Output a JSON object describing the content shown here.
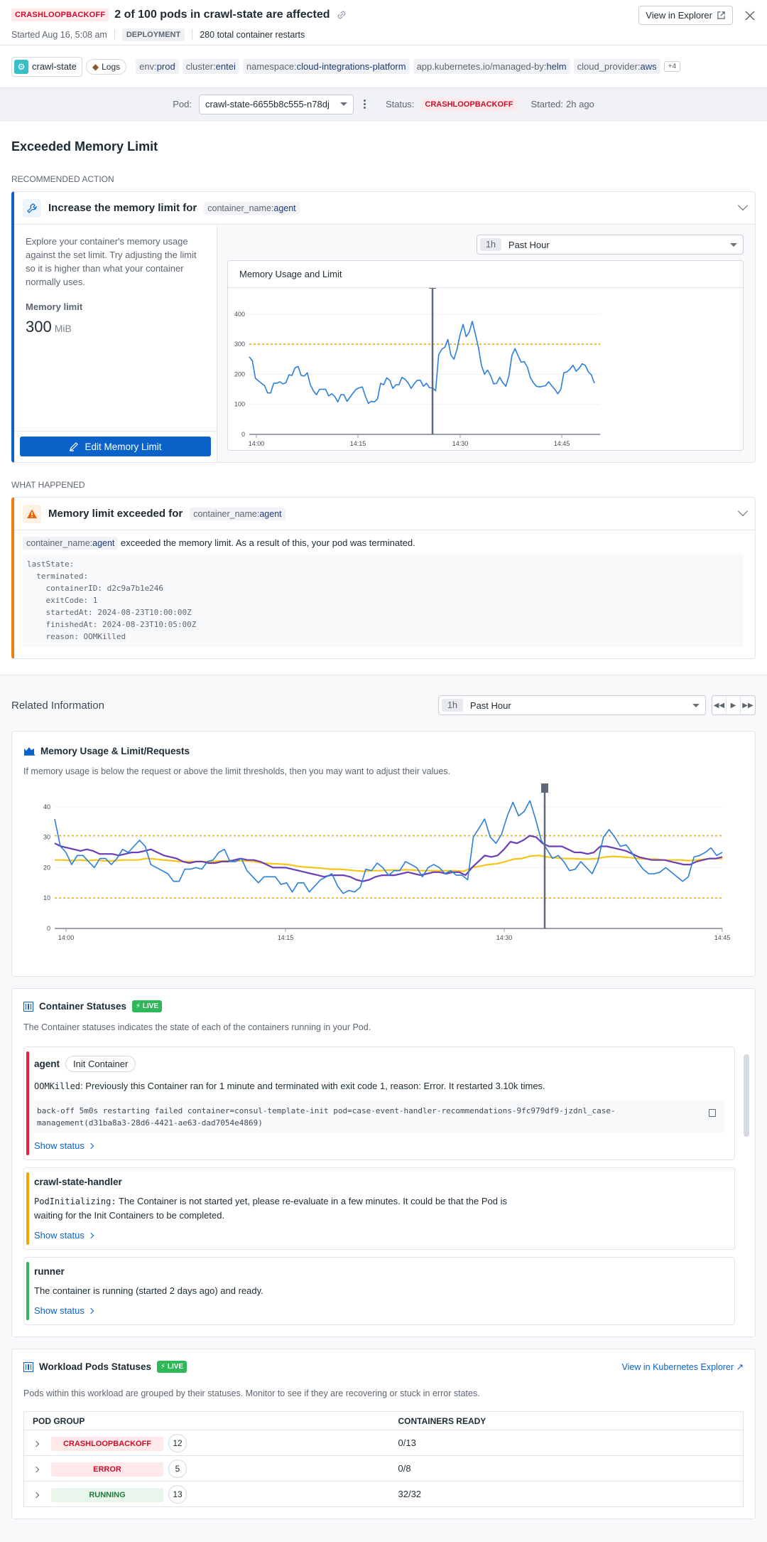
{
  "header": {
    "status_badge": "CRASHLOOPBACKOFF",
    "title": "2 of 100 pods in crawl-state are affected",
    "started": "Started Aug 16, 5:08 am",
    "kind_badge": "DEPLOYMENT",
    "restarts": "280 total container restarts",
    "view_explorer": "View in Explorer"
  },
  "tags": {
    "service": "crawl-state",
    "logs": "Logs",
    "items": [
      {
        "k": "env:",
        "v": "prod"
      },
      {
        "k": "cluster:",
        "v": "entei"
      },
      {
        "k": "namespace:",
        "v": "cloud-integrations-platform"
      },
      {
        "k": "app.kubernetes.io/managed-by:",
        "v": "helm"
      },
      {
        "k": "cloud_provider:",
        "v": "aws"
      }
    ],
    "more": "+4"
  },
  "podbar": {
    "pod_label": "Pod:",
    "pod_value": "crawl-state-6655b8c555-n78dj",
    "status_label": "Status:",
    "status_value": "CRASHLOOPBACKOFF",
    "started_label": "Started:",
    "started_value": "2h ago"
  },
  "section_title": "Exceeded Memory Limit",
  "recommended": {
    "label": "RECOMMENDED ACTION",
    "title": "Increase the memory limit for",
    "tag_k": "container_name:",
    "tag_v": "agent",
    "description": "Explore your container's memory usage against the set limit. Try adjusting the limit so it is higher than what your container normally uses.",
    "limit_label": "Memory limit",
    "limit_value": "300",
    "limit_unit": "MiB",
    "edit_button": "Edit Memory Limit",
    "time_pill": "1h",
    "time_label": "Past Hour",
    "chart_title": "Memory Usage and Limit"
  },
  "what_happened": {
    "label": "WHAT HAPPENED",
    "title": "Memory limit exceeded for",
    "tag_k": "container_name:",
    "tag_v": "agent",
    "line": "exceeded the memory limit. As a result of this, your pod was terminated.",
    "code": "lastState:\n  terminated:\n    containerID: d2c9a7b1e246\n    exitCode: 1\n    startedAt: 2024-08-23T10:00:00Z\n    finishedAt: 2024-08-23T10:05:00Z\n    reason: OOMKilled"
  },
  "related": {
    "title": "Related Information",
    "time_pill": "1h",
    "time_label": "Past Hour",
    "mem_panel": {
      "title": "Memory Usage & Limit/Requests",
      "desc": "If memory usage is below the request or above the limit thresholds, then you may want to adjust their values."
    },
    "containers": {
      "title": "Container Statuses",
      "live": "LIVE",
      "desc": "The Container statuses indicates the state of each of the containers running in your Pod.",
      "items": [
        {
          "name": "agent",
          "pill": "Init Container",
          "code_prefix": "OOMKilled",
          "msg": ": Previously this Container ran for 1 minute and terminated with exit code 1, reason: Error. It restarted 3.10k times.",
          "log": "back-off 5m0s restarting failed container=consul-template-init pod=case-event-handler-recommendations-9fc979df9-jzdnl_case-management(d31ba8a3-28d6-4421-ae63-dad7054e4869)",
          "show": "Show status",
          "color": "#e5213d"
        },
        {
          "name": "crawl-state-handler",
          "code_prefix": "PodInitializing:",
          "msg": " The Container is not started yet, please re-evaluate in a few minutes. It could be that the Pod is waiting for the Init Containers to be completed.",
          "show": "Show status",
          "color": "#f5a300"
        },
        {
          "name": "runner",
          "msg": "The container is running (started 2 days ago) and ready.",
          "show": "Show status",
          "color": "#2fb85a"
        }
      ]
    },
    "workload": {
      "title": "Workload Pods Statuses",
      "live": "LIVE",
      "link": "View in Kubernetes Explorer",
      "desc": "Pods within this workload are grouped by their statuses. Monitor to see if they are recovering or stuck in error states.",
      "columns": [
        "POD GROUP",
        "CONTAINERS READY"
      ],
      "rows": [
        {
          "group": "CRASHLOOPBACKOFF",
          "count": "12",
          "ready": "0/13"
        },
        {
          "group": "ERROR",
          "count": "5",
          "ready": "0/8"
        },
        {
          "group": "RUNNING",
          "count": "13",
          "ready": "32/32"
        }
      ]
    }
  },
  "chart_data": [
    {
      "type": "line",
      "title": "Memory Usage and Limit",
      "x_ticks": [
        "14:00",
        "14:15",
        "14:30",
        "14:45"
      ],
      "y_ticks": [
        0,
        100,
        200,
        300,
        400
      ],
      "ylim": [
        0,
        440
      ],
      "threshold": {
        "name": "limit",
        "value": 300,
        "color": "#f5b800"
      },
      "marker_time": "14:25",
      "series": [
        {
          "name": "memory usage",
          "color": "#2b7fd9",
          "values": [
            258,
            245,
            187,
            178,
            170,
            162,
            138,
            138,
            170,
            170,
            175,
            168,
            172,
            198,
            196,
            222,
            226,
            196,
            194,
            205,
            165,
            145,
            132,
            150,
            150,
            150,
            128,
            135,
            126,
            108,
            132,
            132,
            110,
            124,
            138,
            150,
            155,
            158,
            128,
            103,
            110,
            108,
            118,
            170,
            165,
            188,
            180,
            153,
            165,
            165,
            190,
            183,
            172,
            153,
            168,
            180,
            180,
            160,
            170,
            155,
            155,
            145,
            265,
            283,
            290,
            316,
            264,
            250,
            283,
            332,
            366,
            325,
            340,
            376,
            335,
            290,
            230,
            200,
            214,
            196,
            168,
            170,
            190,
            172,
            160,
            195,
            263,
            285,
            262,
            240,
            242,
            225,
            190,
            172,
            160,
            158,
            160,
            162,
            175,
            162,
            150,
            135,
            150,
            205,
            208,
            217,
            230,
            210,
            220,
            235,
            230,
            208,
            198,
            170
          ]
        }
      ]
    },
    {
      "type": "line",
      "title": "Memory Usage & Limit/Requests",
      "x_ticks": [
        "14:00",
        "14:15",
        "14:30",
        "14:45"
      ],
      "y_ticks": [
        0,
        10,
        20,
        30,
        40
      ],
      "ylim": [
        0,
        43
      ],
      "thresholds": [
        {
          "name": "limit",
          "value": 30.5
        },
        {
          "name": "request",
          "value": 10
        }
      ],
      "series": [
        {
          "name": "usage",
          "color": "#2b7fd9",
          "values": [
            36,
            27,
            25,
            21,
            24,
            24,
            22,
            20,
            23,
            23,
            21,
            23,
            26,
            25,
            27,
            29,
            27,
            21,
            20,
            19,
            18,
            15.5,
            15.5,
            19.5,
            19.5,
            20,
            19.5,
            22,
            22.5,
            25,
            26,
            22,
            22,
            23,
            19,
            17,
            15,
            17,
            17,
            17,
            14.5,
            15,
            12,
            15,
            15,
            12,
            14,
            16,
            17,
            18,
            14,
            11.5,
            12.5,
            12,
            13.5,
            19.5,
            19,
            21.5,
            20,
            17.5,
            19,
            19,
            22,
            21,
            20,
            17,
            20,
            21,
            20,
            18,
            19,
            17.5,
            17.5,
            16,
            30,
            33,
            36,
            30,
            28,
            31,
            37,
            41.5,
            37,
            38.5,
            42,
            36,
            29,
            26,
            23,
            24,
            22,
            19,
            19.5,
            22,
            20,
            18,
            22,
            30,
            32.5,
            30,
            27,
            27.5,
            25,
            22,
            19.5,
            18,
            18,
            18.5,
            20,
            18.5,
            17,
            15.5,
            17,
            23.5,
            24,
            25,
            26.5,
            24,
            25
          ]
        },
        {
          "name": "avg",
          "color": "#6b3fb8",
          "values": [
            28,
            27,
            26.5,
            26,
            25.5,
            26,
            25.5,
            24.5,
            24.5,
            24.5,
            24,
            24.5,
            25,
            25,
            25.5,
            26,
            25,
            24,
            23.5,
            23,
            22,
            21.5,
            22,
            22,
            21.5,
            21.5,
            22,
            22,
            22.5,
            23,
            22.5,
            22.5,
            22,
            21,
            20,
            20,
            20,
            19.5,
            19,
            18.5,
            18,
            17.5,
            17,
            17.5,
            17.5,
            17.5,
            17,
            16,
            15.5,
            16,
            17,
            17.5,
            17.5,
            17.5,
            18,
            18.5,
            18,
            17.5,
            18,
            18.5,
            18.5,
            18,
            18.5,
            18.5,
            17.5,
            20,
            22,
            24,
            23.5,
            24,
            26,
            28.5,
            28,
            29,
            30.5,
            30,
            28,
            27,
            27,
            27,
            26,
            25,
            25,
            24.5,
            25,
            27,
            27,
            26.5,
            26,
            25.5,
            24.5,
            23.5,
            23,
            22.5,
            22.5,
            22.5,
            22,
            21.5,
            21,
            21,
            22,
            22.5,
            23,
            23,
            23.5
          ]
        },
        {
          "name": "request avg",
          "color": "#f5c518",
          "values": [
            22.5,
            22.5,
            22.3,
            22.5,
            22.3,
            22.5,
            22.2,
            22.2,
            22.5,
            22.5,
            22.5,
            23,
            22.8,
            22.5,
            22.3,
            22,
            22,
            22,
            22,
            22,
            22.2,
            22.3,
            22.3,
            22.2,
            22,
            21.5,
            21.3,
            21.2,
            21,
            20.5,
            20.2,
            20,
            19.8,
            19.5,
            19.5,
            19.3,
            19,
            18.8,
            19,
            19,
            19.2,
            19.2,
            19.3,
            19.2,
            19,
            19,
            19,
            19,
            19,
            18.8,
            20,
            20.5,
            21,
            21.3,
            22,
            22.8,
            23,
            23.8,
            24,
            23.5,
            23.2,
            23,
            23,
            22.8,
            22.8,
            23,
            23.5,
            23.7,
            23.5,
            23.3,
            23,
            22.8,
            22.8,
            22.5,
            22.5,
            22.5,
            22.3,
            22.5,
            22.8,
            23,
            23
          ]
        }
      ]
    }
  ]
}
